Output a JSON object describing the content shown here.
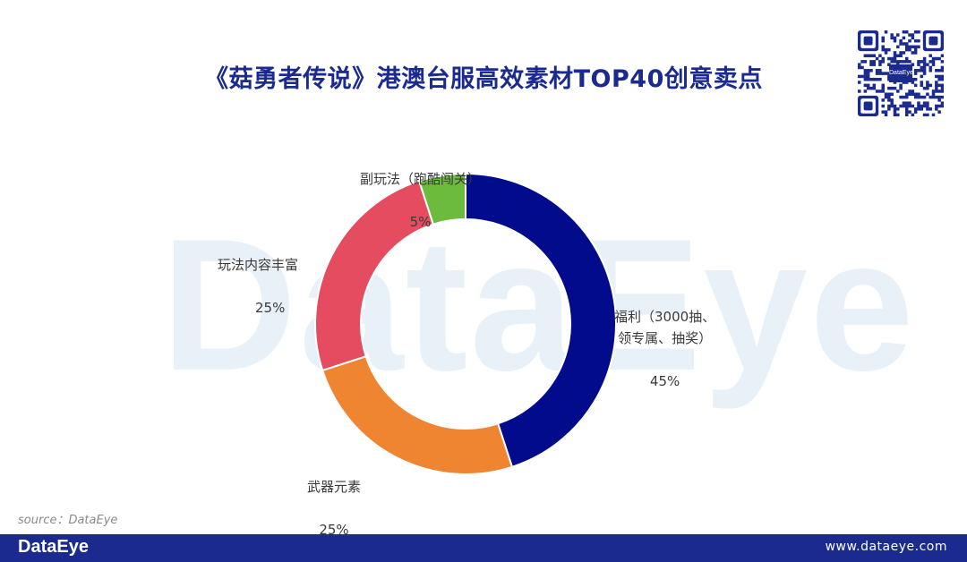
{
  "header": {
    "title": "《菇勇者传说》港澳台服高效素材TOP40创意卖点"
  },
  "watermark": "DataEye",
  "qr": {
    "logo_text": "DataEye"
  },
  "chart_data": {
    "type": "pie",
    "donut": true,
    "slices": [
      {
        "label": "福利（3000抽、\n领专属、抽奖）",
        "value": 45,
        "value_label": "45%",
        "color": "#020b8c"
      },
      {
        "label": "武器元素",
        "value": 25,
        "value_label": "25%",
        "color": "#ef8431"
      },
      {
        "label": "玩法内容丰富",
        "value": 25,
        "value_label": "25%",
        "color": "#e54c5f"
      },
      {
        "label": "副玩法（跑酷闯关）",
        "value": 5,
        "value_label": "5%",
        "color": "#6dbb3c"
      }
    ]
  },
  "source": "source：DataEye",
  "footer": {
    "brand": "DataEye",
    "url": "www.dataeye.com"
  }
}
